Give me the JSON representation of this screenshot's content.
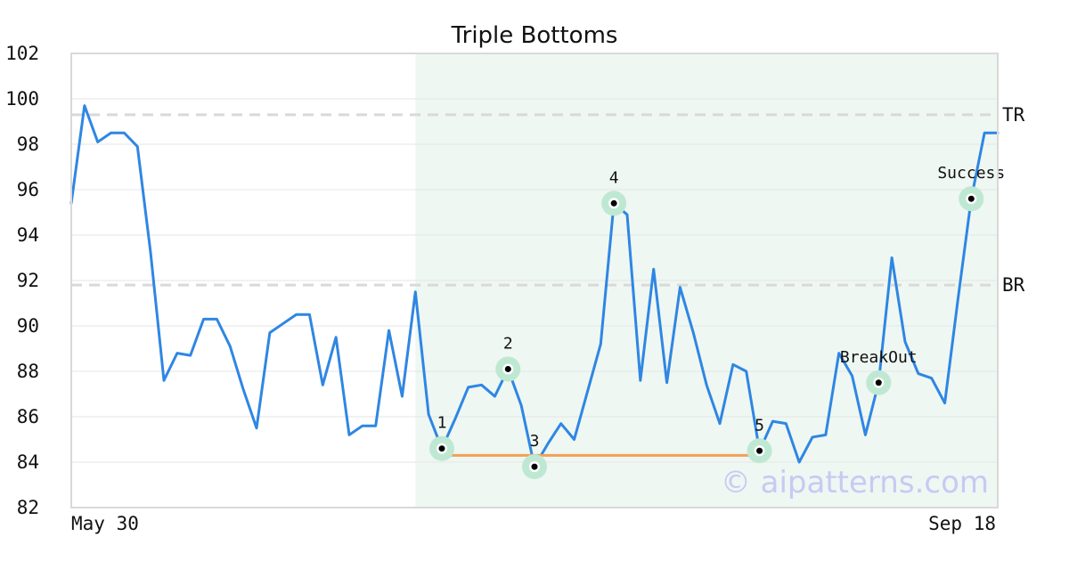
{
  "chart_data": {
    "type": "line",
    "title": "Triple Bottoms",
    "xlabel": "",
    "ylabel": "",
    "ylim": [
      82,
      102
    ],
    "yticks": [
      82,
      84,
      86,
      88,
      90,
      92,
      94,
      96,
      98,
      100,
      102
    ],
    "x_tick_labels": {
      "start": "May 30",
      "end": "Sep 18"
    },
    "grid": true,
    "colors": {
      "line": "#2f86e3",
      "highlight": "#eef7f2",
      "marker_halo": "#bfe8d2",
      "marker_dot": "#000000",
      "neckline": "#f4a054",
      "reference": "#d9d9d9",
      "watermark": "#c9c9f3"
    },
    "highlight_range": [
      26,
      70
    ],
    "series": [
      {
        "values": [
          95.4,
          99.7,
          98.1,
          98.5,
          98.5,
          97.9,
          93.2,
          87.6,
          88.8,
          88.7,
          90.3,
          90.3,
          89.1,
          87.2,
          85.5,
          89.7,
          90.1,
          90.5,
          90.5,
          87.4,
          89.5,
          85.2,
          85.6,
          85.6,
          89.8,
          86.9,
          91.5,
          86.1,
          84.6,
          85.9,
          87.3,
          87.4,
          86.9,
          88.1,
          86.5,
          83.8,
          84.8,
          85.7,
          85.0,
          87.1,
          89.2,
          95.4,
          94.9,
          87.6,
          92.5,
          87.5,
          91.7,
          89.7,
          87.4,
          85.7,
          88.3,
          88.0,
          84.5,
          85.8,
          85.7,
          84.0,
          85.1,
          85.2,
          88.8,
          87.8,
          85.2,
          87.5,
          93.0,
          89.3,
          87.9,
          87.7,
          86.6,
          91.2,
          95.6,
          98.5,
          98.5
        ]
      }
    ],
    "reference_lines": [
      {
        "label": "TR",
        "y": 99.3
      },
      {
        "label": "BR",
        "y": 91.8
      }
    ],
    "neckline": {
      "x1": 28,
      "x2": 52,
      "y": 84.3
    },
    "annotations": [
      {
        "label": "1",
        "x": 28,
        "y": 84.6
      },
      {
        "label": "2",
        "x": 33,
        "y": 88.1
      },
      {
        "label": "3",
        "x": 35,
        "y": 83.8
      },
      {
        "label": "4",
        "x": 41,
        "y": 95.4
      },
      {
        "label": "5",
        "x": 52,
        "y": 84.5
      },
      {
        "label": "BreakOut",
        "x": 61,
        "y": 87.5
      },
      {
        "label": "Success",
        "x": 68,
        "y": 95.6
      }
    ],
    "watermark": "© aipatterns.com"
  }
}
